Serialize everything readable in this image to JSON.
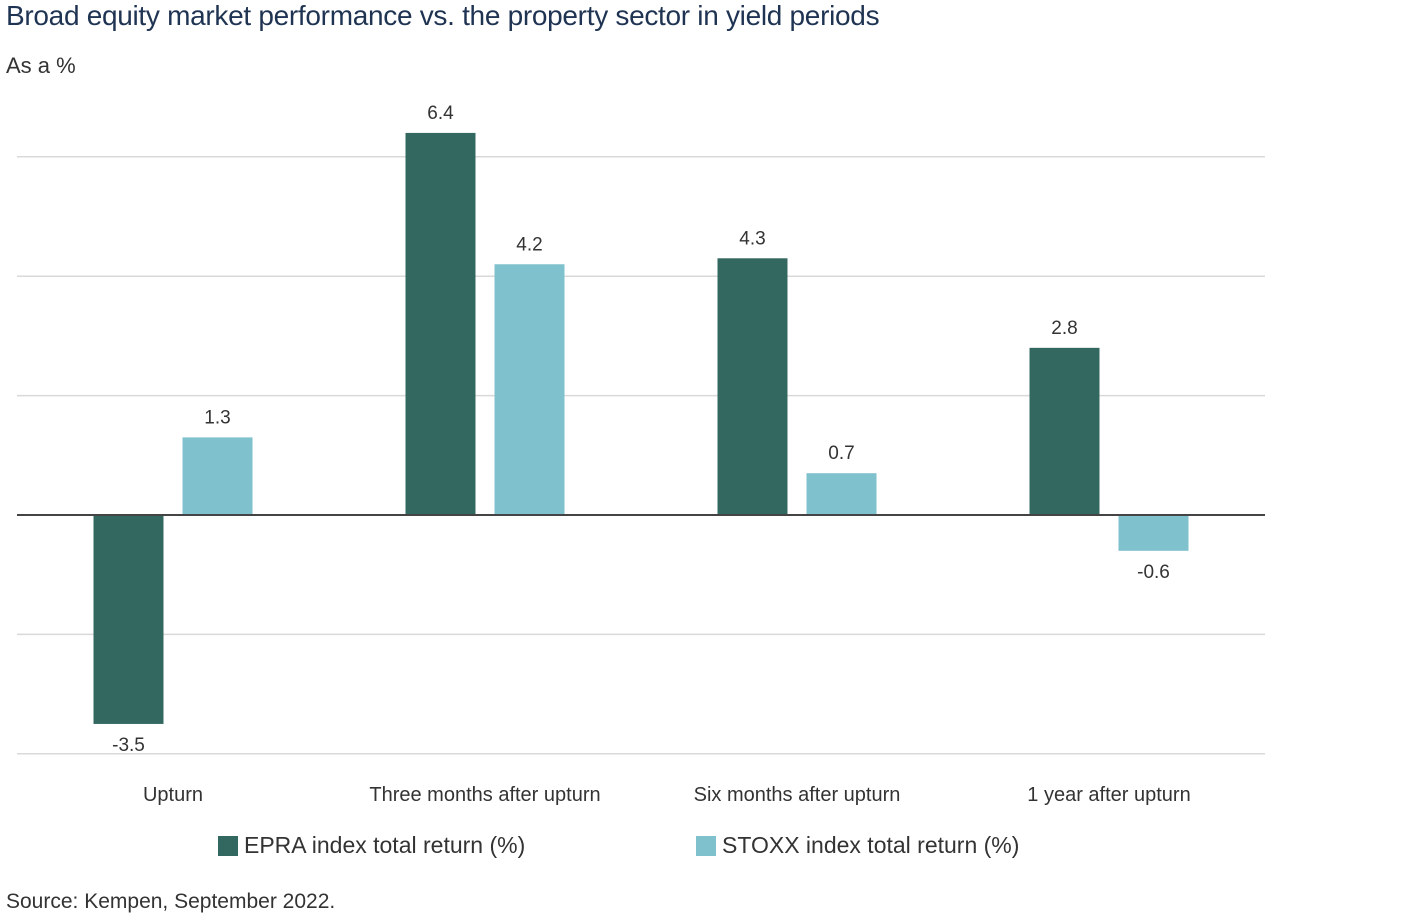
{
  "title": "Broad equity market performance vs. the property sector in yield periods",
  "subtitle": "As a %",
  "source": "Source: Kempen, September 2022.",
  "colors": {
    "series_1": "#336860",
    "series_2": "#7fc1cc",
    "gridline": "#d9d9d9",
    "zero_line": "#444444",
    "text": "#333333"
  },
  "chart_data": {
    "type": "bar",
    "categories": [
      "Upturn",
      "Three months after upturn",
      "Six months after upturn",
      "1 year after upturn"
    ],
    "series": [
      {
        "name": "EPRA index total return (%)",
        "values": [
          -3.5,
          6.4,
          4.3,
          2.8
        ]
      },
      {
        "name": "STOXX index total return (%)",
        "values": [
          1.3,
          4.2,
          0.7,
          -0.6
        ]
      }
    ],
    "ylim": [
      -4,
      6
    ],
    "grid": true,
    "legend_position": "bottom",
    "data_labels": true
  }
}
